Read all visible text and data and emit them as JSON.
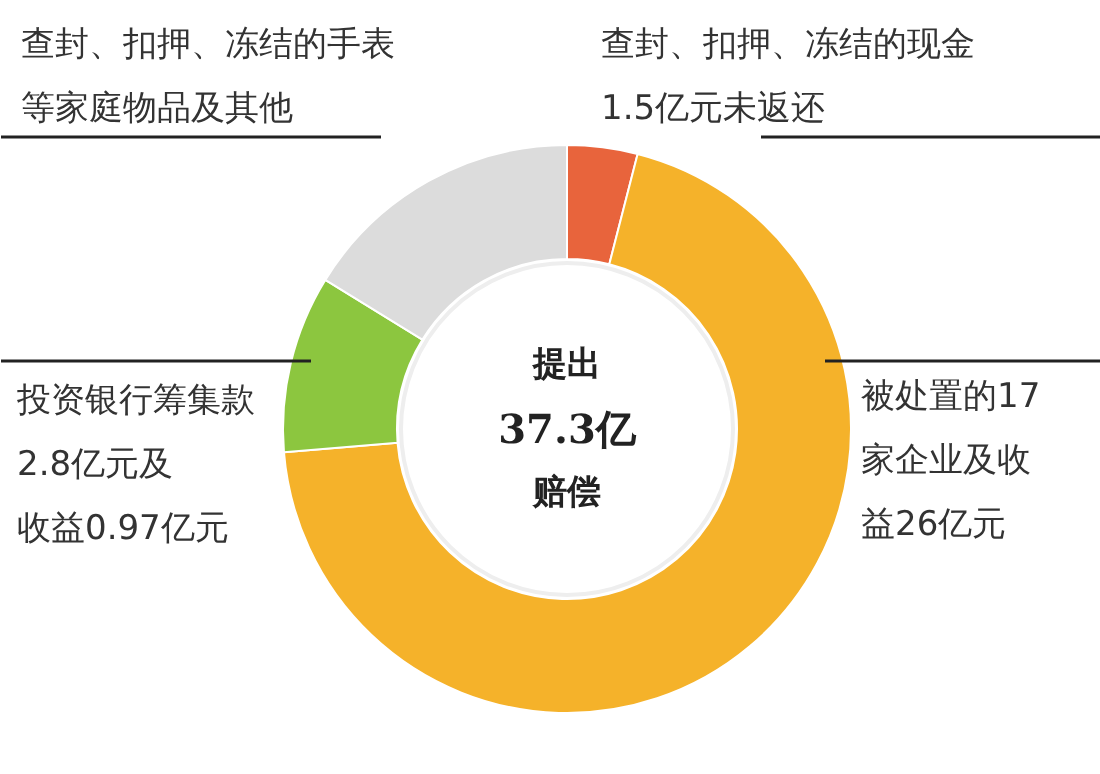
{
  "chart_data": {
    "type": "donut",
    "categories": [
      "查封、扣押、冻结的现金1.5亿元未返还",
      "被处置的17家企业及收益26亿元",
      "投资银行筹集款2.8亿元及收益0.97亿元",
      "查封、扣押、冻结的手表等家庭物品及其他"
    ],
    "values": [
      4.0,
      69.7,
      10.1,
      16.2
    ],
    "colors": [
      "#e8643c",
      "#f5b22a",
      "#8cc63f",
      "#dcdcdc"
    ],
    "annotations": [
      "提出",
      "37.3亿",
      "赔偿"
    ]
  }
}
